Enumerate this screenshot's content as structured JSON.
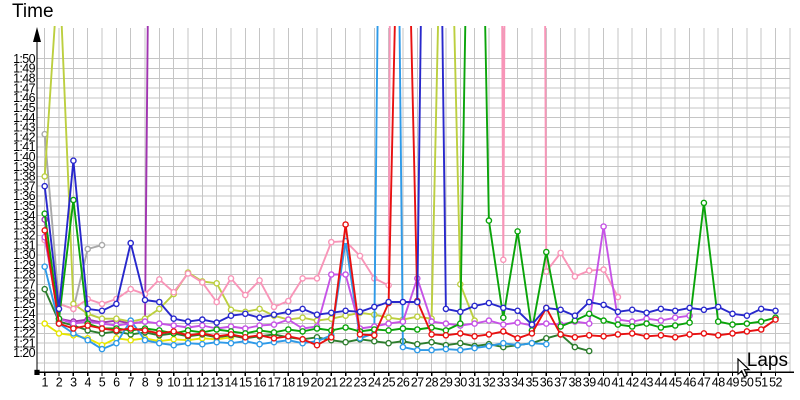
{
  "chart_data": {
    "type": "line",
    "title": "",
    "xlabel": "Laps",
    "ylabel": "Time",
    "laps": 52,
    "x_tick_labels": [
      1,
      2,
      3,
      4,
      5,
      6,
      7,
      8,
      9,
      10,
      11,
      12,
      13,
      14,
      15,
      16,
      17,
      18,
      19,
      20,
      21,
      22,
      23,
      24,
      25,
      26,
      27,
      28,
      29,
      30,
      31,
      32,
      33,
      34,
      35,
      36,
      37,
      38,
      39,
      40,
      41,
      42,
      43,
      44,
      45,
      46,
      47,
      48,
      49,
      50,
      51,
      52
    ],
    "y_tick_labels": [
      "1:50",
      "1:49",
      "1:48",
      "1:47",
      "1:46",
      "1:45",
      "1:44",
      "1:43",
      "1:42",
      "1:41",
      "1:40",
      "1:39",
      "1:38",
      "1:37",
      "1:36",
      "1:35",
      "1:34",
      "1:33",
      "1:32",
      "1:31",
      "1:30",
      "1:29",
      "1:28",
      "1:27",
      "1:26",
      "1:25",
      "1:24",
      "1:23",
      "1:22",
      "1:21",
      "1:20"
    ],
    "y_range_seconds": [
      79,
      113
    ],
    "grid": true,
    "legend": "none",
    "marker": "open-circle",
    "offchart_note": "values above 1:53 run off the top of the plot (pit stops / retirements)",
    "series": [
      {
        "name": "gray",
        "color": "#a8a8a8",
        "values": [
          102.3,
          85.0,
          84.5,
          90.6,
          91.0
        ]
      },
      {
        "name": "purple",
        "color": "#a035b0",
        "values": [
          93.6,
          83.5,
          83.2,
          83.4,
          83.1,
          83.3,
          83.0,
          83.2,
          240
        ]
      },
      {
        "name": "yellow",
        "color": "#e6e600",
        "values": [
          83.0,
          82.0,
          81.8,
          81.5,
          80.8,
          81.5,
          81.3,
          81.5,
          81.2,
          81.4,
          81.3,
          81.5,
          81.4,
          81.6
        ]
      },
      {
        "name": "yellow-green",
        "color": "#bccf3f",
        "values": [
          98.0,
          120,
          85.0,
          84.0,
          83.5,
          83.5,
          83.2,
          83.5,
          84.5,
          86.0,
          88.2,
          87.3,
          87.1,
          84.4,
          84.2,
          84.5,
          83.8,
          83.4,
          83.6,
          83.3,
          83.5,
          83.8,
          84.1,
          83.9,
          83.6,
          83.4,
          83.7,
          83.5,
          150,
          87.0,
          83.3
        ]
      },
      {
        "name": "pink",
        "color": "#f895b8",
        "values": [
          91.5,
          85.0,
          84.5,
          85.5,
          85.0,
          85.5,
          86.5,
          86.0,
          87.5,
          86.2,
          88.1,
          87.2,
          85.2,
          87.6,
          85.9,
          87.4,
          84.7,
          85.3,
          87.6,
          87.6,
          91.3,
          91.4,
          89.9,
          87.6,
          86.9,
          400,
          400,
          400,
          400,
          400,
          400,
          400,
          89.5,
          400,
          400,
          88.3,
          90.2,
          87.8,
          88.4,
          88.5,
          85.7
        ]
      },
      {
        "name": "dark-green",
        "color": "#2d7d2d",
        "values": [
          86.5,
          83.2,
          82.8,
          82.3,
          82.0,
          82.2,
          81.9,
          82.1,
          81.8,
          82.0,
          81.7,
          81.9,
          81.6,
          81.8,
          81.5,
          81.7,
          81.9,
          81.6,
          81.4,
          81.6,
          81.3,
          81.1,
          81.4,
          81.2,
          81.0,
          81.2,
          80.9,
          81.1,
          80.8,
          81.0,
          80.7,
          80.9,
          80.6,
          80.8,
          81.0,
          81.5,
          81.9,
          80.6,
          80.2
        ]
      },
      {
        "name": "cyan",
        "color": "#2e9ae8",
        "values": [
          88.8,
          83.0,
          82.0,
          81.3,
          80.4,
          81.0,
          83.3,
          81.3,
          81.0,
          80.8,
          81.0,
          80.9,
          81.1,
          81.0,
          81.2,
          80.9,
          81.1,
          81.3,
          81.0,
          81.2,
          81.8,
          91.4,
          81.5,
          82.0,
          220,
          80.6,
          80.3,
          80.3,
          80.4,
          80.3,
          80.5,
          80.7,
          81.0,
          80.8,
          81.0,
          80.9
        ]
      },
      {
        "name": "violet",
        "color": "#c653e6",
        "values": [
          91.8,
          83.5,
          83.0,
          83.2,
          83.0,
          82.8,
          83.0,
          83.2,
          83.0,
          82.8,
          82.6,
          82.8,
          82.5,
          82.7,
          82.5,
          82.8,
          82.9,
          83.4,
          82.5,
          82.7,
          88.0,
          88.0,
          82.5,
          82.7,
          83.0,
          83.2,
          87.6,
          83.2,
          83.0,
          82.8,
          83.0,
          83.3,
          82.9,
          83.1,
          82.8,
          83.0,
          82.9,
          83.2,
          83.0,
          92.9,
          83.4,
          83.2,
          83.5,
          83.3,
          83.6,
          83.8
        ]
      },
      {
        "name": "green",
        "color": "#0aa40a",
        "values": [
          94.2,
          83.5,
          95.6,
          83.0,
          82.5,
          82.5,
          82.3,
          82.5,
          82.3,
          82.0,
          82.3,
          82.1,
          82.4,
          82.2,
          82.0,
          82.3,
          82.1,
          82.4,
          82.2,
          82.5,
          82.3,
          82.6,
          82.2,
          82.4,
          82.3,
          82.5,
          82.4,
          82.6,
          82.3,
          83.0,
          170,
          93.5,
          83.6,
          92.4,
          82.3,
          90.3,
          82.7,
          83.3,
          84.0,
          83.3,
          82.9,
          82.7,
          83.0,
          82.6,
          82.8,
          83.1,
          95.3,
          83.2,
          82.9,
          83.0,
          83.2,
          83.6
        ]
      },
      {
        "name": "red",
        "color": "#e81010",
        "values": [
          92.5,
          83.0,
          82.5,
          82.8,
          82.5,
          82.3,
          82.5,
          82.3,
          82.0,
          82.2,
          81.8,
          82.0,
          81.7,
          81.9,
          81.6,
          81.8,
          81.5,
          81.7,
          81.4,
          80.8,
          81.6,
          93.1,
          81.9,
          81.8,
          85.1,
          150,
          85.3,
          81.9,
          81.8,
          82.0,
          81.7,
          81.9,
          82.2,
          81.5,
          82.0,
          84.6,
          81.9,
          81.6,
          81.8,
          81.7,
          81.9,
          82.0,
          81.7,
          81.8,
          81.6,
          81.9,
          82.0,
          81.8,
          82.0,
          82.2,
          82.4,
          83.4
        ]
      },
      {
        "name": "blue",
        "color": "#2828cc",
        "values": [
          97.0,
          84.5,
          99.6,
          84.5,
          84.3,
          85.0,
          91.2,
          85.4,
          85.2,
          83.5,
          83.2,
          83.4,
          83.1,
          83.8,
          84.0,
          83.6,
          83.9,
          84.2,
          84.5,
          83.9,
          84.1,
          84.3,
          84.2,
          84.7,
          85.2,
          85.2,
          85.2,
          200,
          84.5,
          84.2,
          84.8,
          85.1,
          84.6,
          84.3,
          82.9,
          84.6,
          84.4,
          83.8,
          85.2,
          84.9,
          84.2,
          84.4,
          84.1,
          84.5,
          84.3,
          84.6,
          84.4,
          84.7,
          84.0,
          83.8,
          84.5,
          84.3
        ]
      }
    ]
  },
  "cursor": {
    "visible": true
  }
}
